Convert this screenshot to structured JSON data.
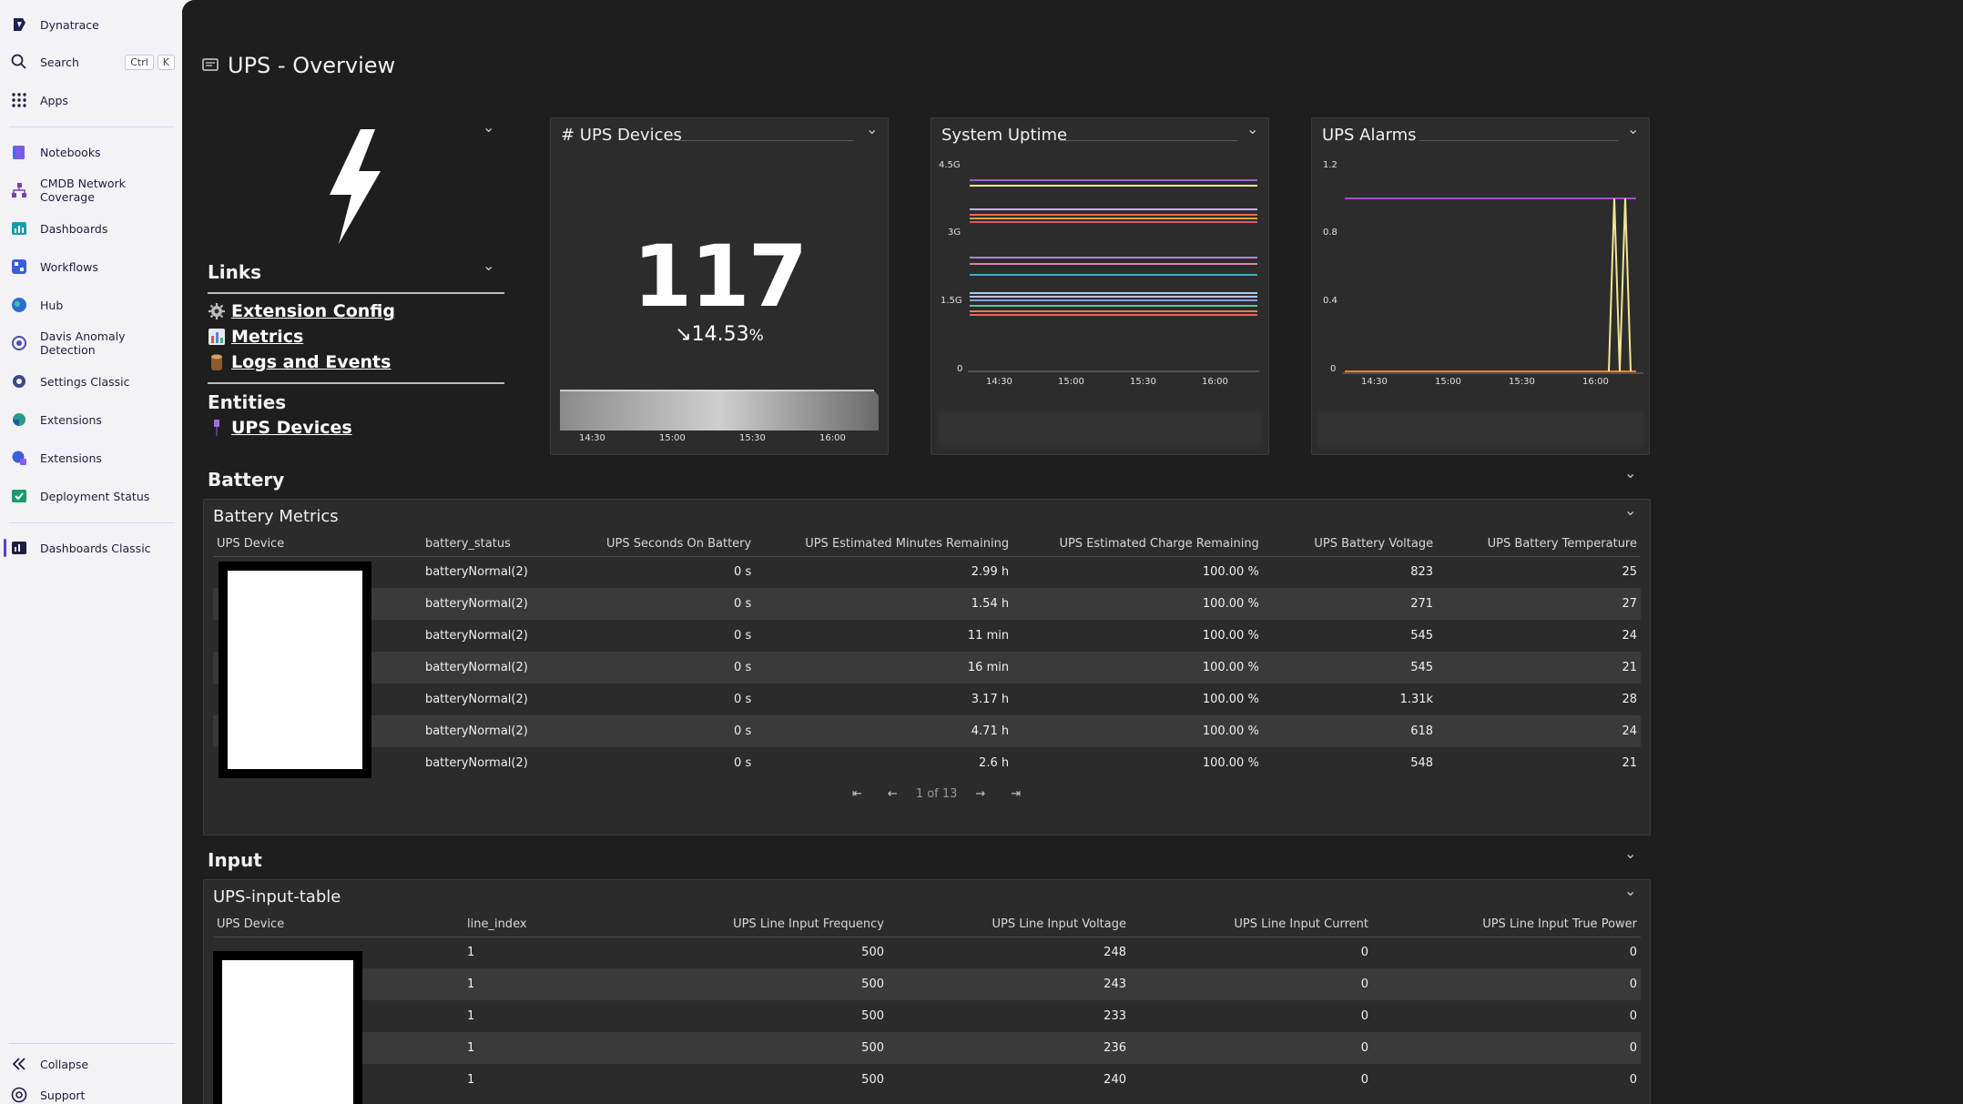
{
  "sidebar": {
    "brand": "Dynatrace",
    "search_label": "Search",
    "search_kbd_1": "Ctrl",
    "search_kbd_2": "K",
    "apps_label": "Apps",
    "items": [
      {
        "label": "Notebooks",
        "icon": "notebooks-icon"
      },
      {
        "label": "CMDB Network Coverage",
        "icon": "network-icon"
      },
      {
        "label": "Dashboards",
        "icon": "dashboards-icon"
      },
      {
        "label": "Workflows",
        "icon": "workflows-icon"
      },
      {
        "label": "Hub",
        "icon": "hub-icon"
      },
      {
        "label": "Davis Anomaly Detection",
        "icon": "davis-icon"
      },
      {
        "label": "Settings Classic",
        "icon": "settings-icon"
      },
      {
        "label": "Extensions",
        "icon": "extensions-icon"
      },
      {
        "label": "Extensions",
        "icon": "extensions-icon"
      },
      {
        "label": "Deployment Status",
        "icon": "deployment-icon"
      }
    ],
    "active_item": "Dashboards Classic",
    "collapse_label": "Collapse",
    "support_label": "Support"
  },
  "page": {
    "title": "UPS - Overview"
  },
  "markdown": {
    "links_heading": "Links",
    "links": [
      "Extension Config",
      "Metrics",
      "Logs and Events"
    ],
    "entities_heading": "Entities",
    "entities": [
      "UPS Devices"
    ]
  },
  "tiles": {
    "ups_devices": {
      "title": "# UPS Devices",
      "value": "117",
      "trend_arrow": "↘",
      "trend_value": "14.53",
      "trend_unit": "%",
      "x_ticks": [
        "14:30",
        "15:00",
        "15:30",
        "16:00"
      ]
    },
    "system_uptime": {
      "title": "System Uptime",
      "y_ticks": [
        "4.5G",
        "3G",
        "1.5G",
        "0"
      ],
      "x_ticks": [
        "14:30",
        "15:00",
        "15:30",
        "16:00"
      ]
    },
    "ups_alarms": {
      "title": "UPS Alarms",
      "y_ticks": [
        "1.2",
        "0.8",
        "0.4",
        "0"
      ],
      "x_ticks": [
        "14:30",
        "15:00",
        "15:30",
        "16:00"
      ]
    }
  },
  "battery": {
    "section_title": "Battery",
    "tile_title": "Battery Metrics",
    "columns": [
      "UPS Device",
      "battery_status",
      "UPS Seconds On Battery",
      "UPS Estimated Minutes Remaining",
      "UPS Estimated Charge Remaining",
      "UPS Battery Voltage",
      "UPS Battery Temperature"
    ],
    "rows": [
      [
        "",
        "batteryNormal(2)",
        "0 s",
        "2.99 h",
        "100.00 %",
        "823",
        "25"
      ],
      [
        "",
        "batteryNormal(2)",
        "0 s",
        "1.54 h",
        "100.00 %",
        "271",
        "27"
      ],
      [
        "",
        "batteryNormal(2)",
        "0 s",
        "11 min",
        "100.00 %",
        "545",
        "24"
      ],
      [
        "",
        "batteryNormal(2)",
        "0 s",
        "16 min",
        "100.00 %",
        "545",
        "21"
      ],
      [
        "",
        "batteryNormal(2)",
        "0 s",
        "3.17 h",
        "100.00 %",
        "1.31k",
        "28"
      ],
      [
        "",
        "batteryNormal(2)",
        "0 s",
        "4.71 h",
        "100.00 %",
        "618",
        "24"
      ],
      [
        "",
        "batteryNormal(2)",
        "0 s",
        "2.6 h",
        "100.00 %",
        "548",
        "21"
      ]
    ],
    "pager_text": "1 of 13"
  },
  "input": {
    "section_title": "Input",
    "tile_title": "UPS-input-table",
    "columns": [
      "UPS Device",
      "line_index",
      "UPS Line Input Frequency",
      "UPS Line Input Voltage",
      "UPS Line Input Current",
      "UPS Line Input True Power"
    ],
    "rows": [
      [
        "",
        "1",
        "500",
        "248",
        "0",
        "0"
      ],
      [
        "",
        "1",
        "500",
        "243",
        "0",
        "0"
      ],
      [
        "",
        "1",
        "500",
        "233",
        "0",
        "0"
      ],
      [
        "",
        "1",
        "500",
        "236",
        "0",
        "0"
      ],
      [
        "",
        "1",
        "500",
        "240",
        "0",
        "0"
      ]
    ]
  },
  "colors": {
    "accent": "#5a3fd0",
    "background": "#1e1e1e",
    "tile": "#2c2c2c"
  }
}
